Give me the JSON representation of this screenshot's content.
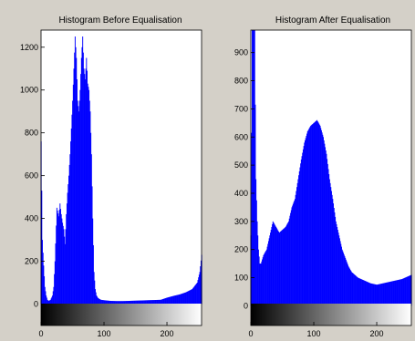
{
  "figure": {
    "background": "#d4d0c8"
  },
  "chart_data": [
    {
      "type": "bar",
      "title": "Histogram Before Equalisation",
      "xlabel": "",
      "ylabel": "",
      "xlim": [
        0,
        255
      ],
      "ylim": [
        -100,
        1280
      ],
      "x_ticks": [
        0,
        100,
        200
      ],
      "y_ticks": [
        0,
        200,
        400,
        600,
        800,
        1000,
        1200
      ],
      "grid": false,
      "color": "#0000ff",
      "colorbar": "grayscale 0-255 below axis",
      "series": [
        {
          "x": [
            0,
            2,
            4,
            6,
            8,
            10,
            12,
            15,
            18,
            20,
            22,
            25,
            28,
            30,
            32,
            34,
            36,
            38,
            40,
            42,
            44,
            46,
            48,
            50,
            52,
            54,
            56,
            58,
            60,
            62,
            64,
            66,
            68,
            70,
            72,
            74,
            76,
            78,
            80,
            82,
            84,
            86,
            88,
            90,
            92,
            95,
            100,
            110,
            120,
            130,
            140,
            150,
            160,
            170,
            180,
            190,
            200,
            210,
            220,
            230,
            240,
            248,
            252,
            255
          ],
          "values": [
            760,
            300,
            180,
            80,
            40,
            20,
            15,
            20,
            40,
            80,
            200,
            450,
            410,
            470,
            420,
            380,
            350,
            280,
            420,
            520,
            600,
            700,
            820,
            950,
            1100,
            1250,
            1150,
            950,
            900,
            1000,
            1150,
            1250,
            1100,
            1050,
            1150,
            1030,
            1000,
            900,
            700,
            400,
            150,
            70,
            40,
            30,
            25,
            20,
            18,
            15,
            14,
            14,
            15,
            16,
            17,
            18,
            19,
            20,
            30,
            38,
            45,
            55,
            70,
            100,
            150,
            230
          ]
        }
      ]
    },
    {
      "type": "bar",
      "title": "Histogram After Equalisation",
      "xlabel": "",
      "ylabel": "",
      "xlim": [
        0,
        255
      ],
      "ylim": [
        -70,
        980
      ],
      "x_ticks": [
        0,
        100,
        200
      ],
      "y_ticks": [
        0,
        100,
        200,
        300,
        400,
        500,
        600,
        700,
        800,
        900
      ],
      "grid": false,
      "color": "#0000ff",
      "colorbar": "grayscale 0-255 below axis",
      "series": [
        {
          "x": [
            0,
            2,
            4,
            6,
            8,
            10,
            12,
            14,
            16,
            20,
            25,
            30,
            35,
            40,
            45,
            50,
            55,
            60,
            65,
            70,
            75,
            80,
            85,
            90,
            95,
            100,
            105,
            110,
            115,
            120,
            125,
            130,
            135,
            140,
            145,
            150,
            155,
            160,
            170,
            180,
            190,
            200,
            210,
            220,
            230,
            240,
            245,
            250,
            255
          ],
          "values": [
            250,
            980,
            980,
            980,
            450,
            300,
            200,
            150,
            150,
            180,
            200,
            250,
            300,
            280,
            260,
            270,
            280,
            300,
            350,
            380,
            450,
            520,
            580,
            620,
            640,
            650,
            660,
            640,
            600,
            540,
            450,
            380,
            300,
            250,
            200,
            170,
            140,
            120,
            100,
            90,
            80,
            75,
            80,
            85,
            90,
            95,
            100,
            105,
            110
          ]
        }
      ]
    }
  ]
}
